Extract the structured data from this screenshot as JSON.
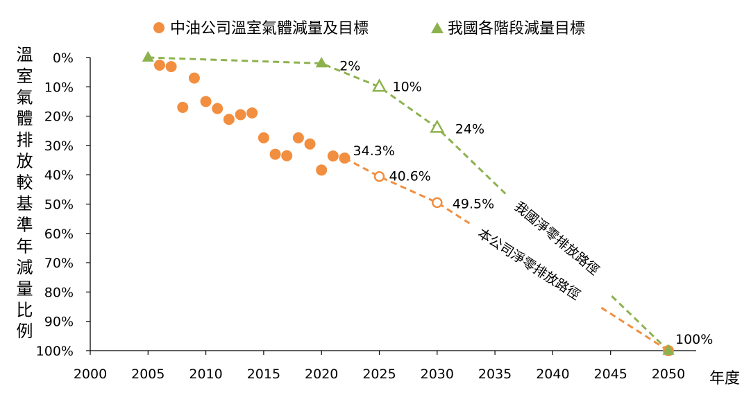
{
  "chart_data": {
    "type": "scatter",
    "xlabel": "年度",
    "ylabel": "溫室氣體排放較基準年減量比例",
    "xlim": [
      2000,
      2050
    ],
    "ylim": [
      0,
      100
    ],
    "y_inverted": true,
    "x_ticks": [
      "2000",
      "2005",
      "2010",
      "2015",
      "2020",
      "2025",
      "2030",
      "2035",
      "2040",
      "2045",
      "2050"
    ],
    "y_ticks": [
      "0%",
      "10%",
      "20%",
      "30%",
      "40%",
      "50%",
      "60%",
      "70%",
      "80%",
      "90%",
      "100%"
    ],
    "legend": {
      "position": "top",
      "items": [
        {
          "label": "中油公司溫室氣體減量及目標",
          "marker": "circle",
          "color": "#f28e3f"
        },
        {
          "label": "我國各階段減量目標",
          "marker": "triangle",
          "color": "#8db24d"
        }
      ]
    },
    "series": [
      {
        "name": "中油公司溫室氣體減量及目標",
        "color": "#f28e3f",
        "points": [
          {
            "x": 2006,
            "y": 2.6
          },
          {
            "x": 2007,
            "y": 3.1
          },
          {
            "x": 2008,
            "y": 17.0
          },
          {
            "x": 2009,
            "y": 7.0
          },
          {
            "x": 2010,
            "y": 15.0
          },
          {
            "x": 2011,
            "y": 17.4
          },
          {
            "x": 2012,
            "y": 21.1
          },
          {
            "x": 2013,
            "y": 19.5
          },
          {
            "x": 2014,
            "y": 18.9
          },
          {
            "x": 2015,
            "y": 27.4
          },
          {
            "x": 2016,
            "y": 33.0
          },
          {
            "x": 2017,
            "y": 33.5
          },
          {
            "x": 2018,
            "y": 27.4
          },
          {
            "x": 2019,
            "y": 29.5
          },
          {
            "x": 2020,
            "y": 38.4
          },
          {
            "x": 2021,
            "y": 33.6
          },
          {
            "x": 2022,
            "y": 34.3
          }
        ],
        "targets": [
          {
            "x": 2025,
            "y": 40.6,
            "label": "40.6%"
          },
          {
            "x": 2030,
            "y": 49.5,
            "label": "49.5%"
          },
          {
            "x": 2050,
            "y": 100,
            "label": "100%"
          }
        ],
        "point_labels": [
          {
            "x": 2022,
            "y": 34.3,
            "label": "34.3%"
          }
        ],
        "path_label": "本公司淨零排放路徑"
      },
      {
        "name": "我國各階段減量目標",
        "color": "#8db24d",
        "points": [
          {
            "x": 2005,
            "y": 0
          },
          {
            "x": 2020,
            "y": 2,
            "label": "2%"
          }
        ],
        "targets": [
          {
            "x": 2025,
            "y": 10,
            "label": "10%"
          },
          {
            "x": 2030,
            "y": 24,
            "label": "24%"
          },
          {
            "x": 2050,
            "y": 100
          }
        ],
        "path_label": "我國淨零排放路徑"
      }
    ]
  }
}
